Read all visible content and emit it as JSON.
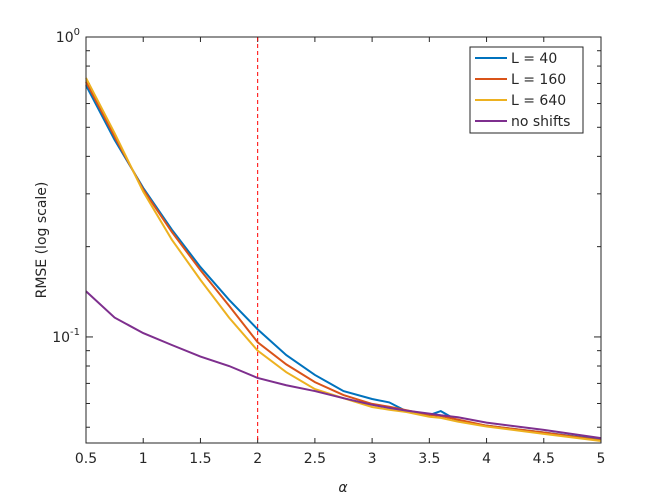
{
  "chart_data": {
    "type": "line",
    "xlabel": "α",
    "ylabel": "RMSE (log scale)",
    "ylog": true,
    "legend": "top-right",
    "x": [
      0.5,
      0.75,
      1,
      1.25,
      1.5,
      1.75,
      2,
      2.25,
      2.5,
      2.75,
      3,
      3.15,
      3.3,
      3.5,
      3.6,
      3.75,
      4,
      4.5,
      5
    ],
    "series": [
      {
        "name": "L = 40",
        "color": "#0072bd",
        "values": [
          0.69,
          0.454,
          0.314,
          0.228,
          0.171,
          0.133,
          0.106,
          0.087,
          0.0747,
          0.066,
          0.0621,
          0.0605,
          0.0565,
          0.0549,
          0.0566,
          0.0525,
          0.0506,
          0.048,
          0.0455
        ]
      },
      {
        "name": "L = 160",
        "color": "#d95319",
        "values": [
          0.71,
          0.465,
          0.31,
          0.224,
          0.167,
          0.127,
          0.096,
          0.081,
          0.0707,
          0.064,
          0.0598,
          0.0585,
          0.057,
          0.055,
          0.0545,
          0.053,
          0.0506,
          0.048,
          0.0452
        ]
      },
      {
        "name": "L = 640",
        "color": "#edb120",
        "values": [
          0.73,
          0.478,
          0.305,
          0.211,
          0.155,
          0.116,
          0.09,
          0.0763,
          0.067,
          0.0625,
          0.0584,
          0.0572,
          0.0562,
          0.0542,
          0.0537,
          0.0522,
          0.0503,
          0.0475,
          0.045
        ]
      },
      {
        "name": "no shifts",
        "color": "#7e2f8e",
        "values": [
          0.142,
          0.116,
          0.103,
          0.094,
          0.086,
          0.08,
          0.073,
          0.069,
          0.066,
          0.0625,
          0.0594,
          0.058,
          0.0568,
          0.0555,
          0.0548,
          0.054,
          0.0518,
          0.049,
          0.046
        ]
      }
    ],
    "xlim": [
      0.5,
      5
    ],
    "xticks": [
      0.5,
      1,
      1.5,
      2,
      2.5,
      3,
      3.5,
      4,
      4.5,
      5
    ],
    "ylim": [
      0.0443,
      1
    ],
    "yticks": [
      {
        "value": 0.1,
        "label": "10",
        "exponent": "-1"
      },
      {
        "value": 1,
        "label": "10",
        "exponent": "0"
      }
    ],
    "yminorticks": [
      0.05,
      0.06,
      0.07,
      0.08,
      0.09,
      0.2,
      0.3,
      0.4,
      0.5,
      0.6,
      0.7,
      0.8,
      0.9
    ],
    "vline": {
      "x": 2,
      "color": "#ff0000"
    }
  }
}
